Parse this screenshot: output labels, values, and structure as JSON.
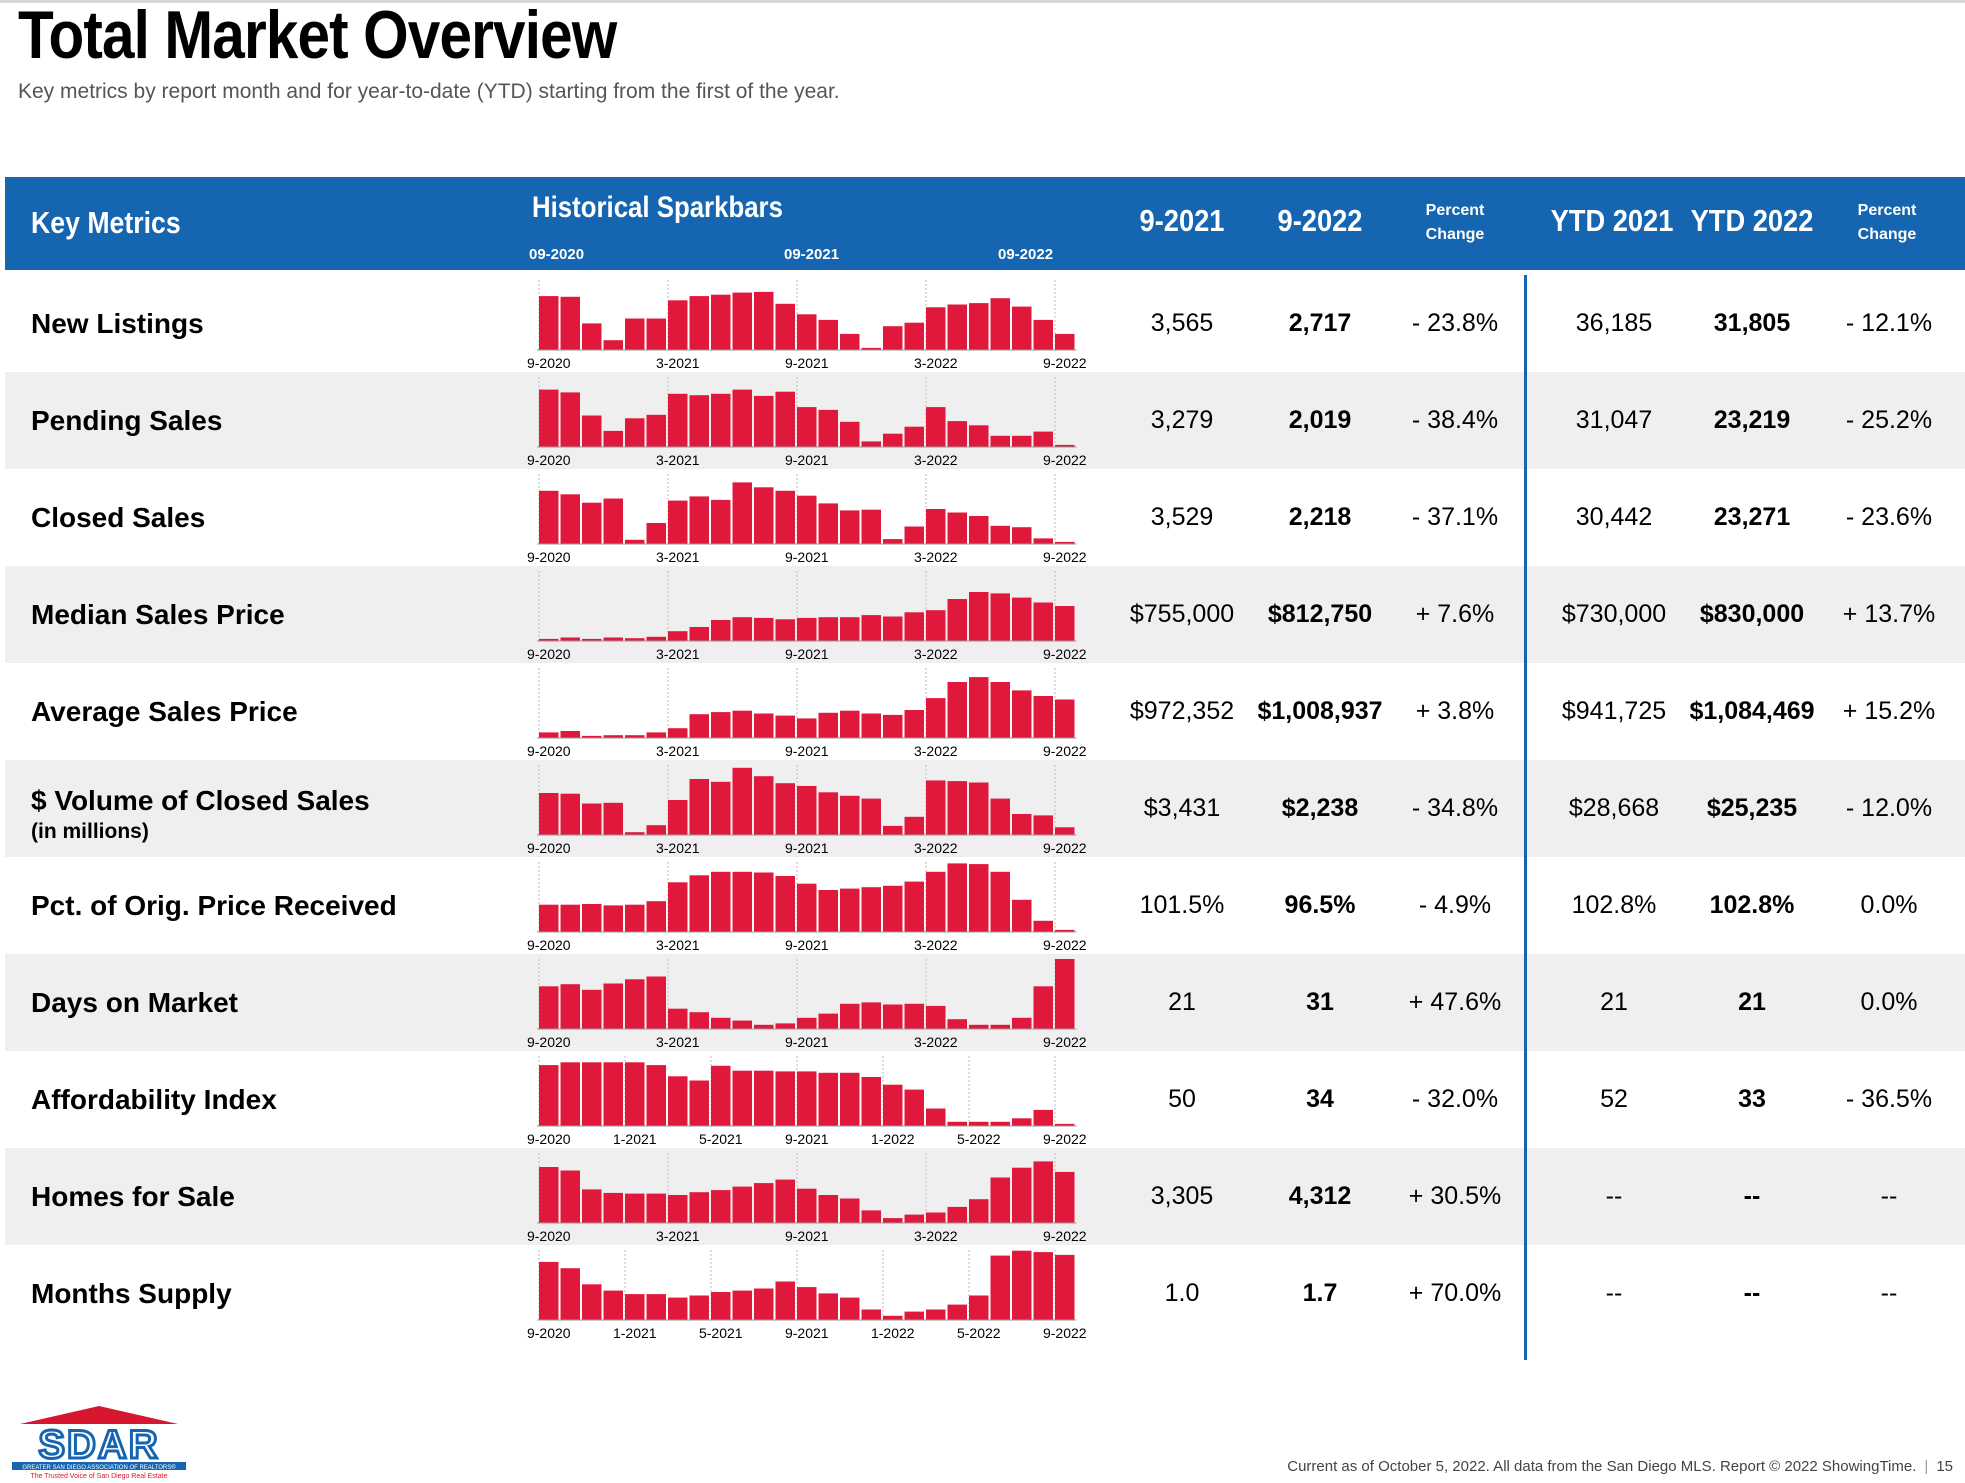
{
  "page": {
    "title": "Total Market Overview",
    "subtitle": "Key metrics by report month and for year-to-date (YTD) starting from the first of the year."
  },
  "header": {
    "key_metrics": "Key Metrics",
    "sparkbars": "Historical Sparkbars",
    "spark_ticks": [
      "09-2020",
      "09-2021",
      "09-2022"
    ],
    "col_2021": "9-2021",
    "col_2022": "9-2022",
    "pct_change": [
      "Percent",
      "Change"
    ],
    "ytd_2021": "YTD 2021",
    "ytd_2022": "YTD 2022",
    "pct_change_ytd": [
      "Percent",
      "Change"
    ]
  },
  "colors": {
    "header_bg": "#1565b0",
    "bar": "#e0183c",
    "alt_row": "#efefef"
  },
  "rows": [
    {
      "label": "New Listings",
      "v2021": "3,565",
      "v2022": "2,717",
      "pct": "- 23.8%",
      "ytd2021": "36,185",
      "ytd2022": "31,805",
      "ytdpct": "- 12.1%",
      "ticks": [
        "9-2020",
        "3-2021",
        "9-2021",
        "3-2022",
        "9-2022"
      ],
      "bars": [
        77,
        76,
        38,
        14,
        45,
        45,
        71,
        77,
        79,
        82,
        83,
        66,
        51,
        43,
        23,
        3,
        34,
        39,
        61,
        65,
        67,
        74,
        62,
        43,
        23
      ]
    },
    {
      "label": "Pending Sales",
      "v2021": "3,279",
      "v2022": "2,019",
      "pct": "- 38.4%",
      "ytd2021": "31,047",
      "ytd2022": "23,219",
      "ytdpct": "- 25.2%",
      "ticks": [
        "9-2020",
        "3-2021",
        "9-2021",
        "3-2022",
        "9-2022"
      ],
      "bars": [
        82,
        78,
        45,
        23,
        41,
        46,
        76,
        74,
        76,
        82,
        73,
        79,
        57,
        53,
        36,
        8,
        19,
        29,
        57,
        37,
        31,
        16,
        16,
        22,
        3
      ]
    },
    {
      "label": "Closed Sales",
      "v2021": "3,529",
      "v2022": "2,218",
      "pct": "- 37.1%",
      "ytd2021": "30,442",
      "ytd2022": "23,271",
      "ytdpct": "- 23.6%",
      "ticks": [
        "9-2020",
        "3-2021",
        "9-2021",
        "3-2022",
        "9-2022"
      ],
      "bars": [
        76,
        71,
        59,
        65,
        6,
        30,
        62,
        68,
        63,
        88,
        81,
        76,
        69,
        58,
        48,
        49,
        7,
        25,
        50,
        45,
        40,
        26,
        24,
        8,
        3
      ]
    },
    {
      "label": "Median Sales Price",
      "v2021": "$755,000",
      "v2022": "$812,750",
      "pct": "+ 7.6%",
      "ytd2021": "$730,000",
      "ytd2022": "$830,000",
      "ytdpct": "+ 13.7%",
      "ticks": [
        "9-2020",
        "3-2021",
        "9-2021",
        "3-2022",
        "9-2022"
      ],
      "bars": [
        3,
        5,
        3,
        5,
        4,
        6,
        14,
        20,
        30,
        34,
        33,
        31,
        33,
        34,
        34,
        37,
        35,
        41,
        44,
        60,
        70,
        68,
        62,
        55,
        50
      ]
    },
    {
      "label": "Average Sales Price",
      "v2021": "$972,352",
      "v2022": "$1,008,937",
      "pct": "+ 3.8%",
      "ytd2021": "$941,725",
      "ytd2022": "$1,084,469",
      "ytdpct": "+ 15.2%",
      "ticks": [
        "9-2020",
        "3-2021",
        "9-2021",
        "3-2022",
        "9-2022"
      ],
      "bars": [
        8,
        10,
        3,
        4,
        4,
        8,
        14,
        34,
        37,
        39,
        35,
        32,
        28,
        36,
        39,
        35,
        33,
        40,
        57,
        80,
        87,
        80,
        68,
        60,
        55
      ]
    },
    {
      "label": "$ Volume of Closed Sales",
      "sublabel": "(in millions)",
      "v2021": "$3,431",
      "v2022": "$2,238",
      "pct": "- 34.8%",
      "ytd2021": "$28,668",
      "ytd2022": "$25,235",
      "ytdpct": "- 12.0%",
      "ticks": [
        "9-2020",
        "3-2021",
        "9-2021",
        "3-2022",
        "9-2022"
      ],
      "bars": [
        60,
        59,
        45,
        46,
        4,
        14,
        50,
        80,
        76,
        96,
        84,
        74,
        70,
        61,
        56,
        52,
        13,
        26,
        78,
        77,
        75,
        52,
        30,
        28,
        11
      ]
    },
    {
      "label": "Pct. of Orig. Price Received",
      "v2021": "101.5%",
      "v2022": "96.5%",
      "pct": "- 4.9%",
      "ytd2021": "102.8%",
      "ytd2022": "102.8%",
      "ytdpct": "0.0%",
      "ticks": [
        "9-2020",
        "3-2021",
        "9-2021",
        "3-2022",
        "9-2022"
      ],
      "bars": [
        39,
        39,
        40,
        38,
        39,
        44,
        71,
        81,
        86,
        86,
        85,
        80,
        69,
        60,
        62,
        64,
        66,
        72,
        86,
        98,
        97,
        86,
        46,
        16,
        3
      ]
    },
    {
      "label": "Days on Market",
      "v2021": "21",
      "v2022": "31",
      "pct": "+ 47.6%",
      "ytd2021": "21",
      "ytd2022": "21",
      "ytdpct": "0.0%",
      "ticks": [
        "9-2020",
        "3-2021",
        "9-2021",
        "3-2022",
        "9-2022"
      ],
      "bars": [
        61,
        64,
        56,
        65,
        71,
        75,
        29,
        24,
        16,
        12,
        6,
        8,
        16,
        22,
        36,
        38,
        35,
        36,
        33,
        14,
        6,
        6,
        16,
        61,
        100
      ]
    },
    {
      "label": "Affordability Index",
      "v2021": "50",
      "v2022": "34",
      "pct": "- 32.0%",
      "ytd2021": "52",
      "ytd2022": "33",
      "ytdpct": "- 36.5%",
      "ticks": [
        "9-2020",
        "1-2021",
        "5-2021",
        "9-2021",
        "1-2022",
        "5-2022",
        "9-2022"
      ],
      "bars": [
        87,
        91,
        91,
        91,
        91,
        87,
        71,
        65,
        86,
        79,
        79,
        78,
        78,
        76,
        76,
        70,
        59,
        52,
        25,
        6,
        6,
        6,
        11,
        23,
        3
      ]
    },
    {
      "label": "Homes for Sale",
      "v2021": "3,305",
      "v2022": "4,312",
      "pct": "+ 30.5%",
      "ytd2021": "--",
      "ytd2022": "--",
      "ytdpct": "--",
      "ticks": [
        "9-2020",
        "3-2021",
        "9-2021",
        "3-2022",
        "9-2022"
      ],
      "bars": [
        80,
        75,
        48,
        43,
        42,
        42,
        40,
        44,
        47,
        52,
        57,
        62,
        49,
        40,
        35,
        18,
        7,
        12,
        15,
        23,
        34,
        65,
        79,
        88,
        73
      ]
    },
    {
      "label": "Months Supply",
      "v2021": "1.0",
      "v2022": "1.7",
      "pct": "+ 70.0%",
      "ytd2021": "--",
      "ytd2022": "--",
      "ytdpct": "--",
      "ticks": [
        "9-2020",
        "1-2021",
        "5-2021",
        "9-2021",
        "1-2022",
        "5-2022",
        "9-2022"
      ],
      "bars": [
        83,
        74,
        51,
        42,
        37,
        37,
        32,
        35,
        40,
        42,
        45,
        55,
        47,
        38,
        32,
        15,
        6,
        12,
        15,
        22,
        35,
        92,
        99,
        97,
        93
      ]
    }
  ],
  "footer": {
    "text": "Current as of October 5, 2022. All data from the San Diego MLS. Report © 2022 ShowingTime.",
    "page": "15"
  },
  "logo": {
    "name": "SDAR",
    "line1": "GREATER SAN DIEGO ASSOCIATION OF REALTORS®",
    "line2": "The Trusted Voice of San Diego Real Estate"
  }
}
